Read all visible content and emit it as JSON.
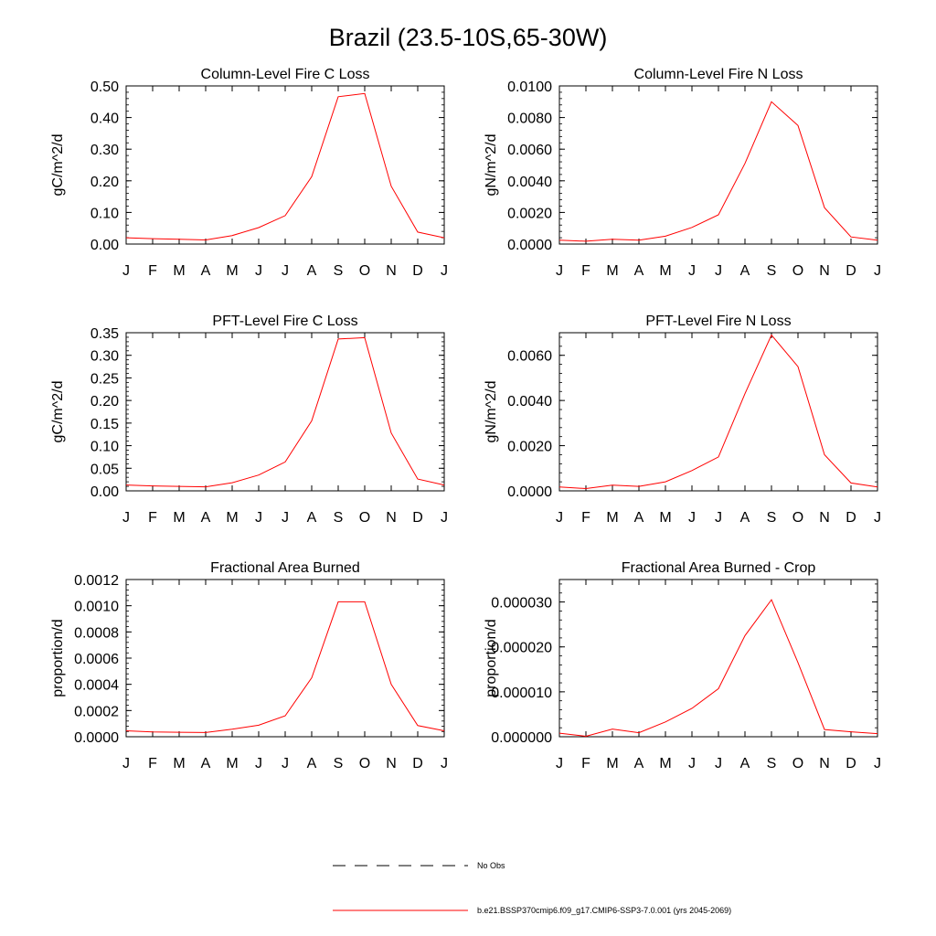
{
  "figure": {
    "title": "Brazil (23.5-10S,65-30W)"
  },
  "legend": {
    "entries": [
      {
        "label": "No Obs",
        "style": "dashed",
        "color": "#000000"
      },
      {
        "label": "b.e21.BSSP370cmip6.f09_g17.CMIP6-SSP3-7.0.001 (yrs 2045-2069)",
        "style": "solid",
        "color": "#ff0000"
      }
    ]
  },
  "series_color": "#ff0000",
  "chart_data": [
    {
      "type": "line",
      "title": "Column-Level Fire C Loss",
      "ylabel": "gC/m^2/d",
      "xlabel": "",
      "categories": [
        "J",
        "F",
        "M",
        "A",
        "M",
        "J",
        "J",
        "A",
        "S",
        "O",
        "N",
        "D",
        "J"
      ],
      "ylim": [
        0,
        0.5
      ],
      "yticks": [
        0,
        0.1,
        0.2,
        0.3,
        0.4,
        0.5
      ],
      "ytick_labels": [
        "0.00",
        "0.10",
        "0.20",
        "0.30",
        "0.40",
        "0.50"
      ],
      "series": [
        {
          "values": [
            0.02,
            0.017,
            0.015,
            0.013,
            0.027,
            0.052,
            0.09,
            0.213,
            0.466,
            0.476,
            0.183,
            0.038,
            0.02
          ]
        }
      ]
    },
    {
      "type": "line",
      "title": "Column-Level Fire N Loss",
      "ylabel": "gN/m^2/d",
      "xlabel": "",
      "categories": [
        "J",
        "F",
        "M",
        "A",
        "M",
        "J",
        "J",
        "A",
        "S",
        "O",
        "N",
        "D",
        "J"
      ],
      "ylim": [
        0,
        0.01
      ],
      "yticks": [
        0,
        0.002,
        0.004,
        0.006,
        0.008,
        0.01
      ],
      "ytick_labels": [
        "0.0000",
        "0.0020",
        "0.0040",
        "0.0060",
        "0.0080",
        "0.0100"
      ],
      "series": [
        {
          "values": [
            0.00025,
            0.00018,
            0.0003,
            0.00025,
            0.0005,
            0.00105,
            0.00185,
            0.0051,
            0.009,
            0.0075,
            0.0023,
            0.00045,
            0.00025
          ]
        }
      ]
    },
    {
      "type": "line",
      "title": "PFT-Level Fire C Loss",
      "ylabel": "gC/m^2/d",
      "xlabel": "",
      "categories": [
        "J",
        "F",
        "M",
        "A",
        "M",
        "J",
        "J",
        "A",
        "S",
        "O",
        "N",
        "D",
        "J"
      ],
      "ylim": [
        0,
        0.35
      ],
      "yticks": [
        0,
        0.05,
        0.1,
        0.15,
        0.2,
        0.25,
        0.3,
        0.35
      ],
      "ytick_labels": [
        "0.00",
        "0.05",
        "0.10",
        "0.15",
        "0.20",
        "0.25",
        "0.30",
        "0.35"
      ],
      "series": [
        {
          "values": [
            0.013,
            0.011,
            0.01,
            0.009,
            0.018,
            0.035,
            0.064,
            0.155,
            0.336,
            0.339,
            0.128,
            0.026,
            0.013
          ]
        }
      ]
    },
    {
      "type": "line",
      "title": "PFT-Level Fire N Loss",
      "ylabel": "gN/m^2/d",
      "xlabel": "",
      "categories": [
        "J",
        "F",
        "M",
        "A",
        "M",
        "J",
        "J",
        "A",
        "S",
        "O",
        "N",
        "D",
        "J"
      ],
      "ylim": [
        0,
        0.007
      ],
      "yticks": [
        0,
        0.002,
        0.004,
        0.006
      ],
      "ytick_labels": [
        "0.0000",
        "0.0020",
        "0.0040",
        "0.0060"
      ],
      "series": [
        {
          "values": [
            0.00017,
            0.0001,
            0.00025,
            0.0002,
            0.0004,
            0.0009,
            0.0015,
            0.0043,
            0.0069,
            0.0055,
            0.0016,
            0.00035,
            0.00017
          ]
        }
      ]
    },
    {
      "type": "line",
      "title": "Fractional Area Burned",
      "ylabel": "proportion/d",
      "xlabel": "",
      "categories": [
        "J",
        "F",
        "M",
        "A",
        "M",
        "J",
        "J",
        "A",
        "S",
        "O",
        "N",
        "D",
        "J"
      ],
      "ylim": [
        0,
        0.0012
      ],
      "yticks": [
        0,
        0.0002,
        0.0004,
        0.0006,
        0.0008,
        0.001,
        0.0012
      ],
      "ytick_labels": [
        "0.0000",
        "0.0002",
        "0.0004",
        "0.0006",
        "0.0008",
        "0.0010",
        "0.0012"
      ],
      "series": [
        {
          "values": [
            4.5e-05,
            3.7e-05,
            3.4e-05,
            3.2e-05,
            5.7e-05,
            8.8e-05,
            0.00016,
            0.00045,
            0.00103,
            0.00103,
            0.0004,
            8.5e-05,
            4.5e-05
          ]
        }
      ]
    },
    {
      "type": "line",
      "title": "Fractional Area Burned - Crop",
      "ylabel": "proportion/d",
      "xlabel": "",
      "categories": [
        "J",
        "F",
        "M",
        "A",
        "M",
        "J",
        "J",
        "A",
        "S",
        "O",
        "N",
        "D",
        "J"
      ],
      "ylim": [
        0,
        3.5e-05
      ],
      "yticks": [
        0,
        1e-05,
        2e-05,
        3e-05
      ],
      "ytick_labels": [
        "0.000000",
        "0.000010",
        "0.000020",
        "0.000030"
      ],
      "series": [
        {
          "values": [
            8e-07,
            1e-07,
            1.7e-06,
            9e-07,
            3.3e-06,
            6.3e-06,
            1.07e-05,
            2.25e-05,
            3.05e-05,
            1.65e-05,
            1.6e-06,
            1.1e-06,
            7e-07
          ]
        }
      ]
    }
  ]
}
